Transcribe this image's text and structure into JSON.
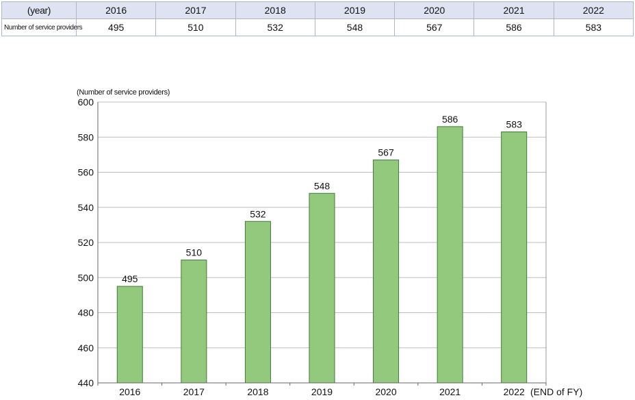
{
  "table": {
    "header_label": "(year)",
    "row_label": "Number of service providers",
    "years": [
      "2016",
      "2017",
      "2018",
      "2019",
      "2020",
      "2021",
      "2022"
    ],
    "values": [
      "495",
      "510",
      "532",
      "548",
      "567",
      "586",
      "583"
    ]
  },
  "chart_data": {
    "type": "bar",
    "ylabel": "(Number of service providers)",
    "xlabel_suffix": "(END of FY)",
    "categories": [
      "2016",
      "2017",
      "2018",
      "2019",
      "2020",
      "2021",
      "2022"
    ],
    "values": [
      495,
      510,
      532,
      548,
      567,
      586,
      583
    ],
    "ylim": [
      440,
      600
    ],
    "yticks": [
      440,
      460,
      480,
      500,
      520,
      540,
      560,
      580,
      600
    ],
    "grid": true,
    "bar_color": "#93c97c",
    "bar_stroke": "#3f7a35"
  }
}
